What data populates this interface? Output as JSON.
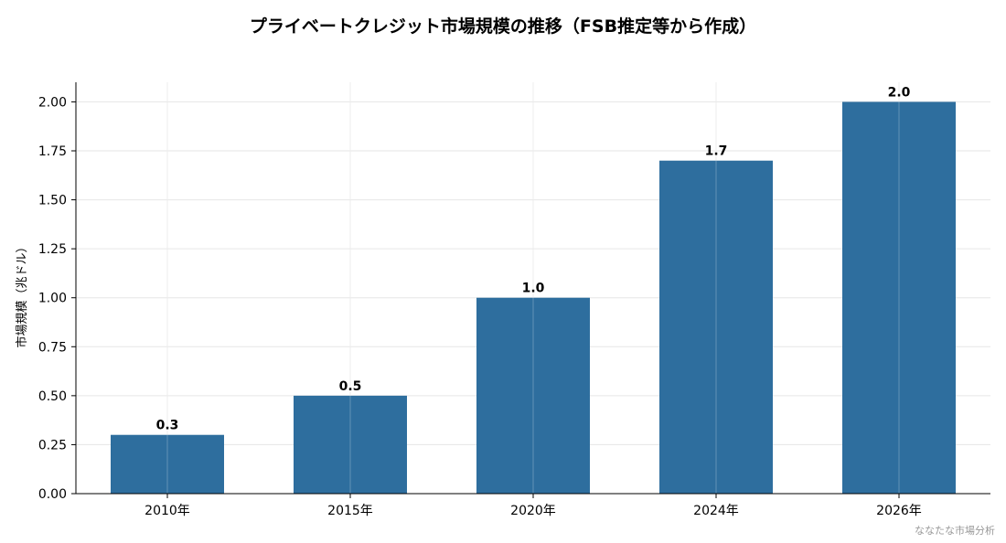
{
  "colors": {
    "bar": "#2e6e9e",
    "grid": "#e6e6e6",
    "axis": "#000000"
  },
  "credit": "ななたな市場分析",
  "chart_data": {
    "type": "bar",
    "title": "プライベートクレジット市場規模の推移（FSB推定等から作成）",
    "xlabel": "",
    "ylabel": "市場規模（兆ドル）",
    "categories": [
      "2010年",
      "2015年",
      "2020年",
      "2024年",
      "2026年"
    ],
    "values": [
      0.3,
      0.5,
      1.0,
      1.7,
      2.0
    ],
    "value_labels": [
      "0.3",
      "0.5",
      "1.0",
      "1.7",
      "2.0"
    ],
    "ylim": [
      0,
      2.1
    ],
    "yticks": [
      "0.00",
      "0.25",
      "0.50",
      "0.75",
      "1.00",
      "1.25",
      "1.50",
      "1.75",
      "2.00"
    ],
    "grid": true,
    "legend": "none"
  }
}
